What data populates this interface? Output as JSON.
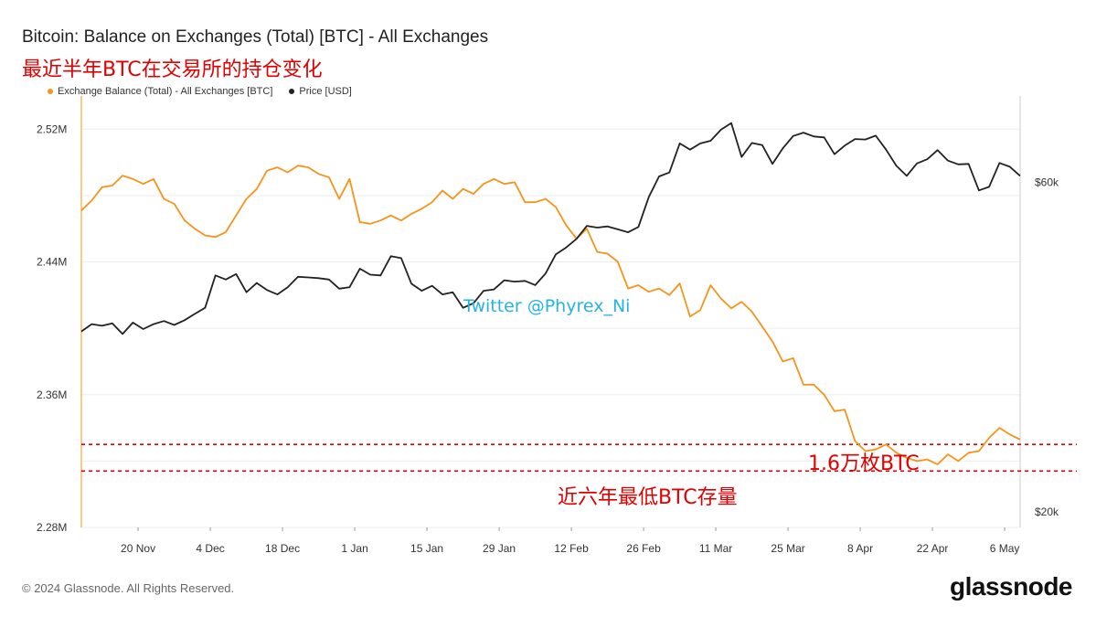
{
  "title": "Bitcoin: Balance on Exchanges (Total) [BTC] - All Exchanges",
  "subtitle": "最近半年BTC在交易所的持仓变化",
  "legend": [
    {
      "label": "Exchange Balance (Total) - All Exchanges [BTC]",
      "color": "#f7931a"
    },
    {
      "label": "Price [USD]",
      "color": "#222222"
    }
  ],
  "footer": "© 2024 Glassnode. All Rights Reserved.",
  "brand": "glassnode",
  "watermark": "Twitter @Phyrex_Ni",
  "annotations": {
    "amount": "1.6万枚BTC",
    "low": "近六年最低BTC存量"
  },
  "chart_data": {
    "type": "line",
    "x_start": "2023-11-09",
    "x_end": "2024-05-09",
    "x_ticks": [
      "20 Nov",
      "4 Dec",
      "18 Dec",
      "1 Jan",
      "15 Jan",
      "29 Jan",
      "12 Feb",
      "26 Feb",
      "11 Mar",
      "25 Mar",
      "8 Apr",
      "22 Apr",
      "6 May"
    ],
    "x_tick_dates": [
      "2023-11-20",
      "2023-12-04",
      "2023-12-18",
      "2024-01-01",
      "2024-01-15",
      "2024-01-29",
      "2024-02-12",
      "2024-02-26",
      "2024-03-11",
      "2024-03-25",
      "2024-04-08",
      "2024-04-22",
      "2024-05-06"
    ],
    "y_left": {
      "ticks": [
        "2.28M",
        "2.36M",
        "2.44M",
        "2.52M"
      ],
      "tick_values": [
        2280000,
        2360000,
        2440000,
        2520000
      ],
      "range": [
        2280000,
        2540000
      ]
    },
    "y_right": {
      "ticks": [
        "$20k",
        "$60k"
      ],
      "tick_values": [
        20000,
        60000
      ],
      "scale": "log",
      "range": [
        19000,
        80000
      ]
    },
    "grid": true,
    "legend_position": "top-left",
    "series": [
      {
        "name": "Exchange Balance (Total) - All Exchanges [BTC]",
        "axis": "left",
        "color": "#f7931a",
        "points": [
          [
            "2023-11-09",
            2471000
          ],
          [
            "2023-11-11",
            2477000
          ],
          [
            "2023-11-13",
            2485000
          ],
          [
            "2023-11-15",
            2486000
          ],
          [
            "2023-11-17",
            2492000
          ],
          [
            "2023-11-19",
            2490000
          ],
          [
            "2023-11-21",
            2487000
          ],
          [
            "2023-11-23",
            2490000
          ],
          [
            "2023-11-25",
            2478000
          ],
          [
            "2023-11-27",
            2475000
          ],
          [
            "2023-11-29",
            2465000
          ],
          [
            "2023-12-01",
            2460000
          ],
          [
            "2023-12-03",
            2456000
          ],
          [
            "2023-12-05",
            2455000
          ],
          [
            "2023-12-07",
            2458000
          ],
          [
            "2023-12-09",
            2468000
          ],
          [
            "2023-12-11",
            2478000
          ],
          [
            "2023-12-13",
            2484000
          ],
          [
            "2023-12-15",
            2495000
          ],
          [
            "2023-12-17",
            2497000
          ],
          [
            "2023-12-19",
            2494000
          ],
          [
            "2023-12-21",
            2498000
          ],
          [
            "2023-12-23",
            2497000
          ],
          [
            "2023-12-25",
            2493000
          ],
          [
            "2023-12-27",
            2491000
          ],
          [
            "2023-12-29",
            2478000
          ],
          [
            "2023-12-31",
            2490000
          ],
          [
            "2024-01-02",
            2464000
          ],
          [
            "2024-01-04",
            2463000
          ],
          [
            "2024-01-06",
            2465000
          ],
          [
            "2024-01-08",
            2468000
          ],
          [
            "2024-01-10",
            2465000
          ],
          [
            "2024-01-12",
            2469000
          ],
          [
            "2024-01-14",
            2472000
          ],
          [
            "2024-01-16",
            2476000
          ],
          [
            "2024-01-18",
            2483000
          ],
          [
            "2024-01-20",
            2478000
          ],
          [
            "2024-01-22",
            2484000
          ],
          [
            "2024-01-24",
            2481000
          ],
          [
            "2024-01-26",
            2487000
          ],
          [
            "2024-01-28",
            2490000
          ],
          [
            "2024-01-30",
            2487000
          ],
          [
            "2024-02-01",
            2488000
          ],
          [
            "2024-02-03",
            2476000
          ],
          [
            "2024-02-05",
            2476000
          ],
          [
            "2024-02-07",
            2478000
          ],
          [
            "2024-02-09",
            2473000
          ],
          [
            "2024-02-11",
            2462000
          ],
          [
            "2024-02-13",
            2454000
          ],
          [
            "2024-02-15",
            2460000
          ],
          [
            "2024-02-17",
            2446000
          ],
          [
            "2024-02-19",
            2445000
          ],
          [
            "2024-02-21",
            2440000
          ],
          [
            "2024-02-23",
            2424000
          ],
          [
            "2024-02-25",
            2426000
          ],
          [
            "2024-02-27",
            2422000
          ],
          [
            "2024-02-29",
            2424000
          ],
          [
            "2024-03-02",
            2420000
          ],
          [
            "2024-03-04",
            2427000
          ],
          [
            "2024-03-06",
            2407000
          ],
          [
            "2024-03-08",
            2411000
          ],
          [
            "2024-03-10",
            2426000
          ],
          [
            "2024-03-12",
            2418000
          ],
          [
            "2024-03-14",
            2412000
          ],
          [
            "2024-03-16",
            2416000
          ],
          [
            "2024-03-18",
            2410000
          ],
          [
            "2024-03-20",
            2401000
          ],
          [
            "2024-03-22",
            2392000
          ],
          [
            "2024-03-24",
            2380000
          ],
          [
            "2024-03-26",
            2382000
          ],
          [
            "2024-03-28",
            2366000
          ],
          [
            "2024-03-30",
            2366000
          ],
          [
            "2024-04-01",
            2360000
          ],
          [
            "2024-04-03",
            2350000
          ],
          [
            "2024-04-05",
            2351000
          ],
          [
            "2024-04-07",
            2332000
          ],
          [
            "2024-04-09",
            2326000
          ],
          [
            "2024-04-11",
            2327000
          ],
          [
            "2024-04-13",
            2330000
          ],
          [
            "2024-04-15",
            2325000
          ],
          [
            "2024-04-17",
            2322000
          ],
          [
            "2024-04-19",
            2320000
          ],
          [
            "2024-04-21",
            2321000
          ],
          [
            "2024-04-23",
            2318000
          ],
          [
            "2024-04-25",
            2324000
          ],
          [
            "2024-04-27",
            2320000
          ],
          [
            "2024-04-29",
            2325000
          ],
          [
            "2024-05-01",
            2326000
          ],
          [
            "2024-05-03",
            2334000
          ],
          [
            "2024-05-05",
            2340000
          ],
          [
            "2024-05-07",
            2336000
          ],
          [
            "2024-05-09",
            2333000
          ]
        ]
      },
      {
        "name": "Price [USD]",
        "axis": "right",
        "color": "#222222",
        "points": [
          [
            "2023-11-09",
            36500
          ],
          [
            "2023-11-11",
            37400
          ],
          [
            "2023-11-13",
            37200
          ],
          [
            "2023-11-15",
            37500
          ],
          [
            "2023-11-17",
            36200
          ],
          [
            "2023-11-19",
            37600
          ],
          [
            "2023-11-21",
            36800
          ],
          [
            "2023-11-23",
            37400
          ],
          [
            "2023-11-25",
            37800
          ],
          [
            "2023-11-27",
            37300
          ],
          [
            "2023-11-29",
            37900
          ],
          [
            "2023-12-01",
            38700
          ],
          [
            "2023-12-03",
            39500
          ],
          [
            "2023-12-05",
            44000
          ],
          [
            "2023-12-07",
            43400
          ],
          [
            "2023-12-09",
            44200
          ],
          [
            "2023-12-11",
            41600
          ],
          [
            "2023-12-13",
            42900
          ],
          [
            "2023-12-15",
            41900
          ],
          [
            "2023-12-17",
            41300
          ],
          [
            "2023-12-19",
            42300
          ],
          [
            "2023-12-21",
            43800
          ],
          [
            "2023-12-23",
            43700
          ],
          [
            "2023-12-25",
            43600
          ],
          [
            "2023-12-27",
            43400
          ],
          [
            "2023-12-29",
            42100
          ],
          [
            "2023-12-31",
            42300
          ],
          [
            "2024-01-02",
            45000
          ],
          [
            "2024-01-04",
            44100
          ],
          [
            "2024-01-06",
            44000
          ],
          [
            "2024-01-08",
            46900
          ],
          [
            "2024-01-10",
            46600
          ],
          [
            "2024-01-12",
            42800
          ],
          [
            "2024-01-14",
            41800
          ],
          [
            "2024-01-16",
            42500
          ],
          [
            "2024-01-18",
            41300
          ],
          [
            "2024-01-20",
            41600
          ],
          [
            "2024-01-22",
            39500
          ],
          [
            "2024-01-24",
            40100
          ],
          [
            "2024-01-26",
            41800
          ],
          [
            "2024-01-28",
            42000
          ],
          [
            "2024-01-30",
            43300
          ],
          [
            "2024-02-01",
            43100
          ],
          [
            "2024-02-03",
            43200
          ],
          [
            "2024-02-05",
            42600
          ],
          [
            "2024-02-07",
            44300
          ],
          [
            "2024-02-09",
            47200
          ],
          [
            "2024-02-11",
            48300
          ],
          [
            "2024-02-13",
            49700
          ],
          [
            "2024-02-15",
            51900
          ],
          [
            "2024-02-17",
            51600
          ],
          [
            "2024-02-19",
            51800
          ],
          [
            "2024-02-21",
            51300
          ],
          [
            "2024-02-23",
            50800
          ],
          [
            "2024-02-25",
            51700
          ],
          [
            "2024-02-27",
            57100
          ],
          [
            "2024-02-29",
            61200
          ],
          [
            "2024-03-02",
            62000
          ],
          [
            "2024-03-04",
            68300
          ],
          [
            "2024-03-06",
            66900
          ],
          [
            "2024-03-08",
            68300
          ],
          [
            "2024-03-10",
            68900
          ],
          [
            "2024-03-12",
            71500
          ],
          [
            "2024-03-14",
            73100
          ],
          [
            "2024-03-16",
            65300
          ],
          [
            "2024-03-18",
            68400
          ],
          [
            "2024-03-20",
            67900
          ],
          [
            "2024-03-22",
            63800
          ],
          [
            "2024-03-24",
            67200
          ],
          [
            "2024-03-26",
            70000
          ],
          [
            "2024-03-28",
            70800
          ],
          [
            "2024-03-30",
            69900
          ],
          [
            "2024-04-01",
            69700
          ],
          [
            "2024-04-03",
            65900
          ],
          [
            "2024-04-05",
            67800
          ],
          [
            "2024-04-07",
            69300
          ],
          [
            "2024-04-09",
            69200
          ],
          [
            "2024-04-11",
            70100
          ],
          [
            "2024-04-13",
            66900
          ],
          [
            "2024-04-15",
            63400
          ],
          [
            "2024-04-17",
            61300
          ],
          [
            "2024-04-19",
            63900
          ],
          [
            "2024-04-21",
            64800
          ],
          [
            "2024-04-23",
            66800
          ],
          [
            "2024-04-25",
            64500
          ],
          [
            "2024-04-27",
            63700
          ],
          [
            "2024-04-29",
            63800
          ],
          [
            "2024-05-01",
            58400
          ],
          [
            "2024-05-03",
            59100
          ],
          [
            "2024-05-05",
            64000
          ],
          [
            "2024-05-07",
            63200
          ],
          [
            "2024-05-09",
            61300
          ]
        ]
      }
    ],
    "reference_lines": [
      {
        "axis": "left",
        "value": 2330000,
        "style": "dashed",
        "color": "#e00000"
      },
      {
        "axis": "left",
        "value": 2314000,
        "style": "dashed",
        "color": "#e00000"
      }
    ]
  }
}
